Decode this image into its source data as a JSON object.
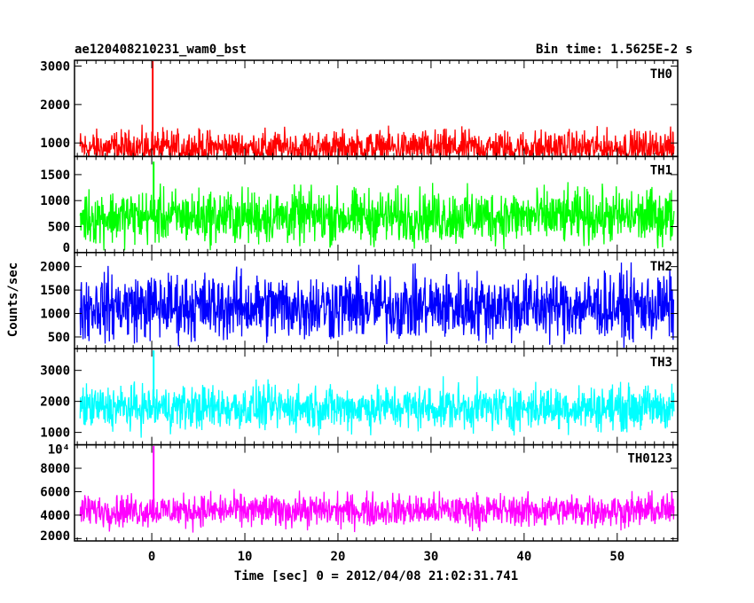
{
  "chart_data": {
    "type": "line",
    "title": "ae120408210231_wam0_bst",
    "subtitle": "Bin time: 1.5625E-2 s",
    "xlabel": "Time [sec] 0 = 2012/04/08 21:02:31.741",
    "ylabel": "Counts/sec",
    "xlim": [
      -8.3,
      56.5
    ],
    "data_range": [
      -7.7,
      56.1
    ],
    "x_ticks": [
      0,
      10,
      20,
      30,
      40,
      50
    ],
    "x_tick_labels": [
      "0",
      "10",
      "20",
      "30",
      "40",
      "50"
    ],
    "grid": false,
    "legend": "none",
    "panels": [
      {
        "name": "TH0",
        "color": "#ff0000",
        "ylim": [
          650,
          3150
        ],
        "yticks": [
          1000,
          2000,
          3000
        ],
        "ytick_labels": [
          "1000",
          "2000",
          "3000"
        ],
        "baseline": 870,
        "noise": 360,
        "spike": {
          "x": 0.1,
          "y": 3150
        }
      },
      {
        "name": "TH1",
        "color": "#00ff00",
        "ylim": [
          0,
          1850
        ],
        "yticks": [
          0,
          500,
          1000,
          1500
        ],
        "ytick_labels": [
          "0",
          "500",
          "1000",
          "1500"
        ],
        "baseline": 690,
        "noise": 410,
        "spike": {
          "x": 0.2,
          "y": 1750
        }
      },
      {
        "name": "TH2",
        "color": "#0000ff",
        "ylim": [
          250,
          2300
        ],
        "yticks": [
          500,
          1000,
          1500,
          2000
        ],
        "ytick_labels": [
          "500",
          "1000",
          "1500",
          "2000"
        ],
        "baseline": 1150,
        "noise": 560,
        "spike": null
      },
      {
        "name": "TH3",
        "color": "#00ffff",
        "ylim": [
          600,
          3700
        ],
        "yticks": [
          1000,
          2000,
          3000
        ],
        "ytick_labels": [
          "1000",
          "2000",
          "3000"
        ],
        "baseline": 1800,
        "noise": 560,
        "spike": {
          "x": 0.2,
          "y": 3650
        }
      },
      {
        "name": "TH0123",
        "color": "#ff00ff",
        "ylim": [
          1800,
          10000
        ],
        "yticks": [
          2000,
          4000,
          6000,
          8000,
          10000
        ],
        "ytick_labels": [
          "2000",
          "4000",
          "6000",
          "8000",
          "10⁴"
        ],
        "baseline": 4400,
        "noise": 1100,
        "spike": {
          "x": 0.2,
          "y": 9900
        }
      }
    ]
  }
}
